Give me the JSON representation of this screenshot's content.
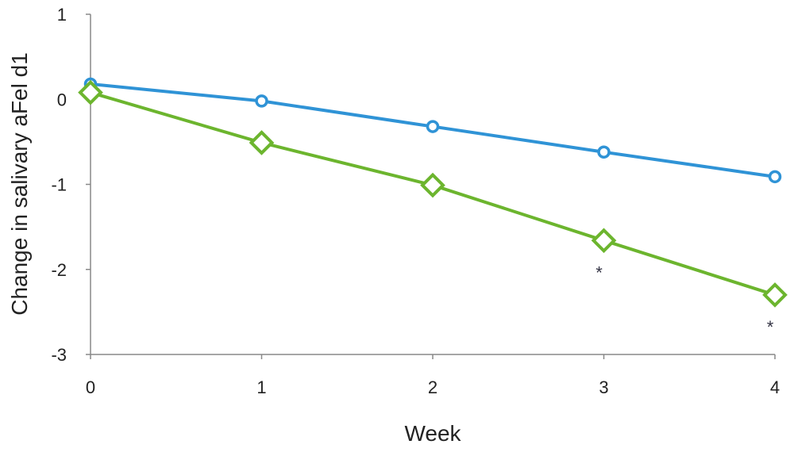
{
  "chart_data": {
    "type": "line",
    "title": "",
    "xlabel": "Week",
    "ylabel": "Change in salivary  aFel d1",
    "x": [
      0,
      1,
      2,
      3,
      4
    ],
    "x_tick_labels": [
      "0",
      "1",
      "2",
      "3",
      "4"
    ],
    "xlim": [
      0,
      4
    ],
    "ylim": [
      -3,
      1
    ],
    "y_ticks": [
      1,
      0,
      -1,
      -2,
      -3
    ],
    "y_tick_labels": [
      "1",
      "0",
      "-1",
      "-2",
      "-3"
    ],
    "grid": false,
    "legend": "none",
    "series": [
      {
        "values": [
          0.18,
          -0.02,
          -0.32,
          -0.62,
          -0.91
        ],
        "color": "#2f93d6",
        "marker": "circle"
      },
      {
        "values": [
          0.08,
          -0.51,
          -1.01,
          -1.66,
          -2.3
        ],
        "color": "#6cb52e",
        "marker": "diamond"
      }
    ],
    "annotations": [
      {
        "text": "*",
        "x": 3,
        "y": -1.98
      },
      {
        "text": "*",
        "x": 4,
        "y": -2.62
      }
    ]
  }
}
